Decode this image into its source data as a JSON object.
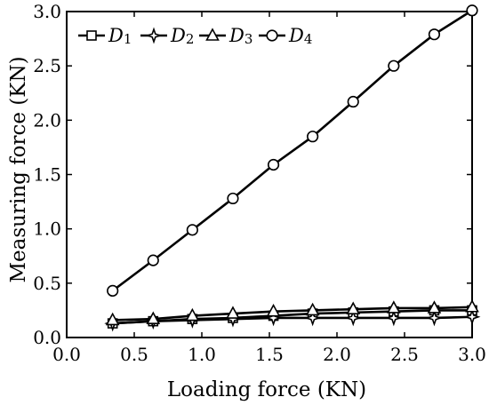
{
  "chart_data": {
    "type": "line",
    "xlabel": "Loading force  (KN)",
    "ylabel": "Measuring force  (KN)",
    "xlim": [
      0.0,
      3.0
    ],
    "ylim": [
      0.0,
      3.0
    ],
    "xticks": [
      "0.0",
      "0.5",
      "1.0",
      "1.5",
      "2.0",
      "2.5",
      "3.0"
    ],
    "yticks": [
      "0.0",
      "0.5",
      "1.0",
      "1.5",
      "2.0",
      "2.5",
      "3.0"
    ],
    "grid": false,
    "legend_position": "top-left",
    "x": [
      0.34,
      0.64,
      0.93,
      1.23,
      1.53,
      1.82,
      2.12,
      2.42,
      2.72,
      3.0
    ],
    "series": [
      {
        "name": "D1",
        "label": "D",
        "sub": "1",
        "marker": "square",
        "values": [
          0.13,
          0.15,
          0.17,
          0.18,
          0.2,
          0.22,
          0.23,
          0.24,
          0.25,
          0.25
        ]
      },
      {
        "name": "D2",
        "label": "D",
        "sub": "2",
        "marker": "diamond-star",
        "values": [
          0.13,
          0.15,
          0.16,
          0.17,
          0.18,
          0.18,
          0.18,
          0.18,
          0.18,
          0.19
        ]
      },
      {
        "name": "D3",
        "label": "D",
        "sub": "3",
        "marker": "triangle",
        "values": [
          0.16,
          0.17,
          0.2,
          0.22,
          0.24,
          0.25,
          0.26,
          0.27,
          0.27,
          0.28
        ]
      },
      {
        "name": "D4",
        "label": "D",
        "sub": "4",
        "marker": "circle",
        "values": [
          0.43,
          0.71,
          0.99,
          1.28,
          1.59,
          1.85,
          2.17,
          2.5,
          2.79,
          3.01
        ]
      }
    ]
  }
}
